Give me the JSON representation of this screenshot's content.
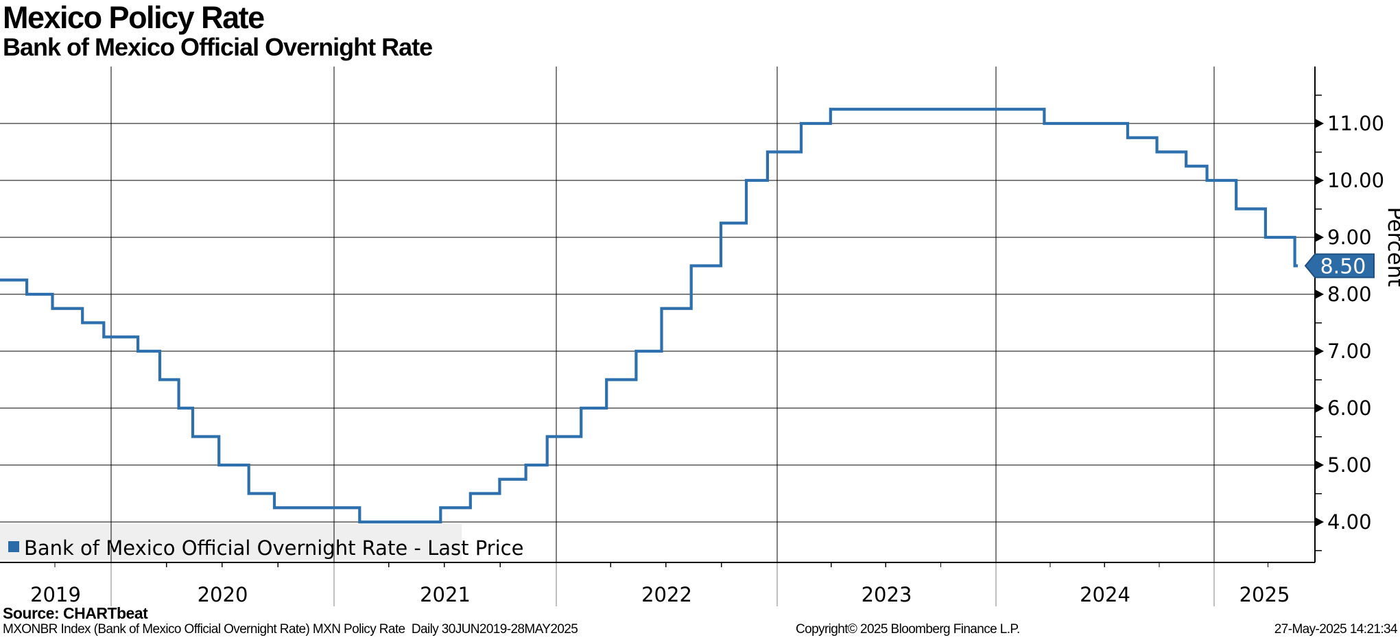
{
  "header": {
    "title": "Mexico Policy Rate",
    "subtitle": "Bank of Mexico Official Overnight Rate"
  },
  "legend": {
    "label": "Bank of Mexico Official Overnight Rate - Last Price",
    "marker_color": "#2b6ca8"
  },
  "last_price_tag": {
    "label": "8.50"
  },
  "footer": {
    "source": "Source: CHARTbeat",
    "description": "MXONBR Index (Bank of Mexico Official Overnight Rate) MXN Policy Rate  Daily 30JUN2019-28MAY2025",
    "copyright": "Copyright© 2025 Bloomberg Finance L.P.",
    "timestamp": "27-May-2025 14:21:34"
  },
  "chart_data": {
    "type": "line",
    "subtype": "step",
    "title": "Mexico Policy Rate",
    "subtitle": "Bank of Mexico Official Overnight Rate",
    "ylabel": "Percent",
    "ylim": [
      3.3,
      12.0
    ],
    "grid": true,
    "legend_position": "bottom-left",
    "series": [
      {
        "name": "Bank of Mexico Official Overnight Rate - Last Price",
        "start": {
          "date": "2019-06-30",
          "value": 8.25
        },
        "rate_changes": [
          [
            "2019-08-16",
            8.0
          ],
          [
            "2019-09-27",
            7.75
          ],
          [
            "2019-11-15",
            7.5
          ],
          [
            "2019-12-20",
            7.25
          ],
          [
            "2020-02-14",
            7.0
          ],
          [
            "2020-03-21",
            6.5
          ],
          [
            "2020-04-21",
            6.0
          ],
          [
            "2020-05-14",
            5.5
          ],
          [
            "2020-06-26",
            5.0
          ],
          [
            "2020-08-14",
            4.5
          ],
          [
            "2020-09-25",
            4.25
          ],
          [
            "2021-02-12",
            4.0
          ],
          [
            "2021-06-25",
            4.25
          ],
          [
            "2021-08-13",
            4.5
          ],
          [
            "2021-09-30",
            4.75
          ],
          [
            "2021-11-12",
            5.0
          ],
          [
            "2021-12-17",
            5.5
          ],
          [
            "2022-02-11",
            6.0
          ],
          [
            "2022-03-25",
            6.5
          ],
          [
            "2022-05-13",
            7.0
          ],
          [
            "2022-06-24",
            7.75
          ],
          [
            "2022-08-12",
            8.5
          ],
          [
            "2022-09-30",
            9.25
          ],
          [
            "2022-11-11",
            10.0
          ],
          [
            "2022-12-16",
            10.5
          ],
          [
            "2023-02-10",
            11.0
          ],
          [
            "2023-03-31",
            11.25
          ],
          [
            "2024-03-22",
            11.0
          ],
          [
            "2024-08-09",
            10.75
          ],
          [
            "2024-09-27",
            10.5
          ],
          [
            "2024-11-15",
            10.25
          ],
          [
            "2024-12-20",
            10.0
          ],
          [
            "2025-02-07",
            9.5
          ],
          [
            "2025-03-28",
            9.0
          ],
          [
            "2025-05-16",
            8.5
          ]
        ],
        "end_date": "2025-05-28",
        "last_value": 8.5
      }
    ],
    "y_ticks": [
      {
        "value": 11,
        "label": "11.00"
      },
      {
        "value": 10,
        "label": "10.00"
      },
      {
        "value": 9,
        "label": "9.00"
      },
      {
        "value": 8,
        "label": "8.00"
      },
      {
        "value": 7,
        "label": "7.00"
      },
      {
        "value": 6,
        "label": "6.00"
      },
      {
        "value": 5,
        "label": "5.00"
      },
      {
        "value": 4,
        "label": "4.00"
      }
    ],
    "y_minor_ticks": [
      3.5,
      4.5,
      5.5,
      6.5,
      7.5,
      8.5,
      9.5,
      10.5,
      11.5
    ],
    "x_years": [
      "2019",
      "2020",
      "2021",
      "2022",
      "2023",
      "2024",
      "2025"
    ],
    "last_price_label": "8.50",
    "colors": {
      "line": "#2e6fad",
      "grid": "#000000",
      "axis": "#000000",
      "year_divider": "#808080",
      "legend_bg": "#efefef",
      "legend_marker": "#2b6ca8",
      "tag_fill": "#2c6ba5",
      "tag_border": "#1d4f7f",
      "tag_text": "#ffffff"
    }
  }
}
